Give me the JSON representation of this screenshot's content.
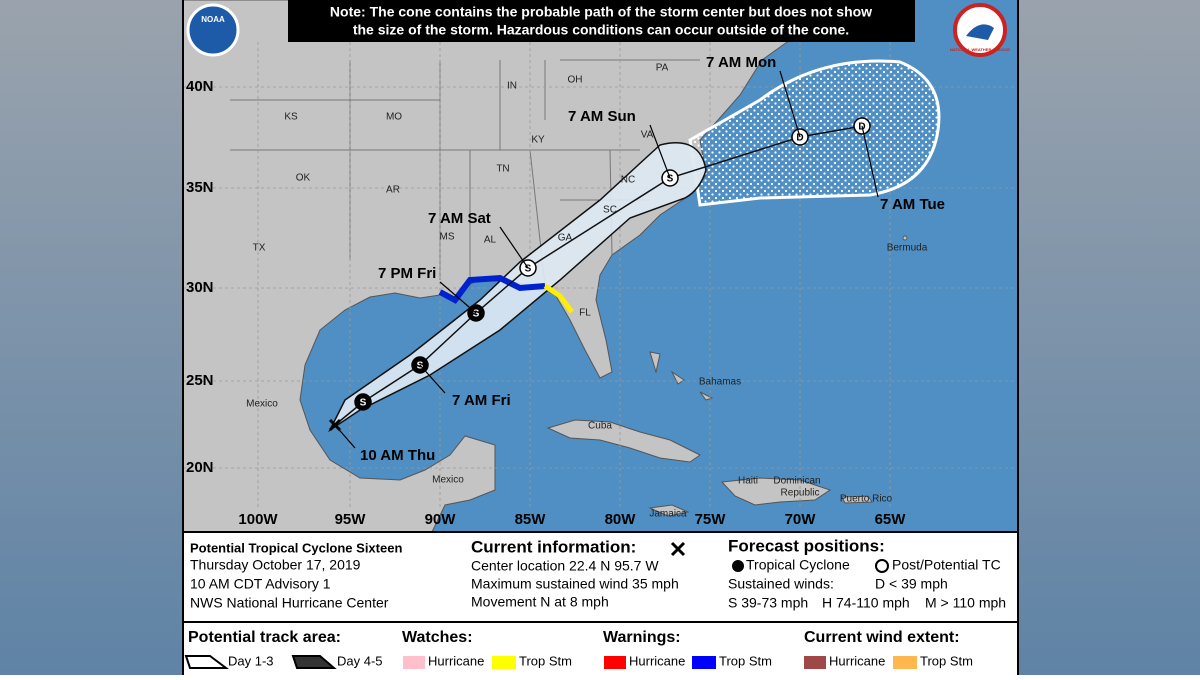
{
  "note": [
    "Note: The cone contains the probable path of the storm center but does not show",
    "the size of the storm. Hazardous conditions can occur outside of the cone."
  ],
  "logos": {
    "left": "NOAA",
    "right": "NATIONAL WEATHER SERVICE"
  },
  "map": {
    "lat_labels": [
      "40N",
      "35N",
      "30N",
      "25N",
      "20N"
    ],
    "lon_labels": [
      "100W",
      "95W",
      "90W",
      "85W",
      "80W",
      "75W",
      "70W",
      "65W"
    ],
    "region_labels": [
      "KS",
      "MO",
      "IN",
      "OH",
      "PA",
      "KY",
      "VA",
      "TN",
      "NC",
      "OK",
      "AR",
      "SC",
      "TX",
      "MS",
      "AL",
      "GA",
      "FL",
      "Mexico",
      "Mexico",
      "Cuba",
      "Bahamas",
      "Jamaica",
      "Haiti",
      "Dominican",
      "Republic",
      "Puerto Rico",
      "Bermuda"
    ],
    "forecast_times": [
      "10 AM Thu",
      "7 AM Fri",
      "7 PM Fri",
      "7 AM Sat",
      "7 AM Sun",
      "7 AM Mon",
      "7 AM Tue"
    ],
    "markers": [
      "S",
      "S",
      "S",
      "S",
      "S",
      "D",
      "D"
    ]
  },
  "info": {
    "storm": [
      "Potential Tropical Cyclone Sixteen",
      "Thursday October 17, 2019",
      "10 AM CDT Advisory 1",
      "NWS National Hurricane Center"
    ],
    "current": {
      "title": "Current information:",
      "lines": [
        "Center location 22.4 N 95.7 W",
        "Maximum sustained wind 35 mph",
        "Movement N at 8 mph"
      ]
    },
    "forecast": {
      "title": "Forecast positions:",
      "tropical": "Tropical Cyclone",
      "post": "Post/Potential TC",
      "winds": "Sustained winds:",
      "d": "D < 39 mph",
      "s": "S 39-73 mph",
      "h": "H 74-110 mph",
      "m": "M > 110 mph"
    },
    "track": {
      "title": "Potential track area:",
      "day13": "Day 1-3",
      "day45": "Day 4-5"
    },
    "watches": {
      "title": "Watches:",
      "hurricane": "Hurricane",
      "trop": "Trop Stm"
    },
    "warnings": {
      "title": "Warnings:",
      "hurricane": "Hurricane",
      "trop": "Trop Stm"
    },
    "wind": {
      "title": "Current wind extent:",
      "hurricane": "Hurricane",
      "trop": "Trop Stm"
    }
  }
}
